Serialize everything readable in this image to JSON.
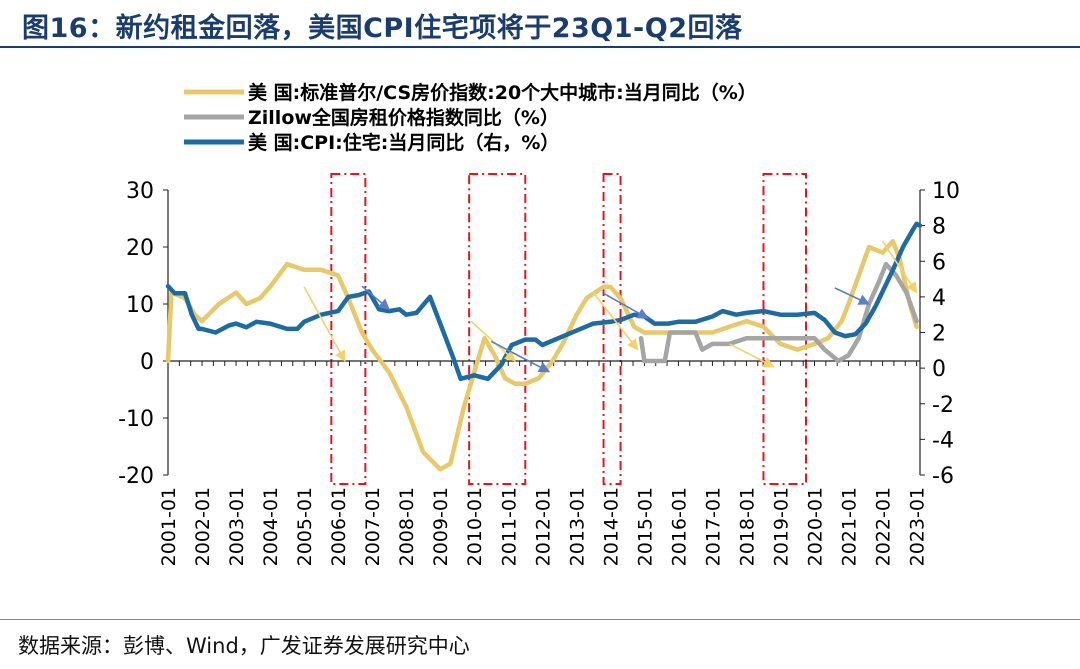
{
  "header": {
    "title": "图16：新约租金回落，美国CPI住宅项将于23Q1-Q2回落"
  },
  "footer": {
    "source": "数据来源：彭博、Wind，广发证券发展研究中心"
  },
  "colors": {
    "cs": "#E7C86A",
    "zillow": "#A5A5A5",
    "cpi": "#1E6BA3",
    "box": "#E3161D",
    "arrow_yellow": "#F4D26B",
    "arrow_blue": "#5B7EC4"
  },
  "chart_data": {
    "type": "line",
    "title": "",
    "legend": [
      {
        "key": "cs",
        "label": "美 国:标准普尔/CS房价指数:20个大中城市:当月同比（%）"
      },
      {
        "key": "zillow",
        "label": "Zillow全国房租价格指数同比（%）"
      },
      {
        "key": "cpi",
        "label": "美 国:CPI:住宅:当月同比（右，%）"
      }
    ],
    "legend_position": "top-left",
    "x_ticks": [
      "2001-01",
      "2002-01",
      "2003-01",
      "2004-01",
      "2005-01",
      "2006-01",
      "2007-01",
      "2008-01",
      "2009-01",
      "2010-01",
      "2011-01",
      "2012-01",
      "2013-01",
      "2014-01",
      "2015-01",
      "2016-01",
      "2017-01",
      "2018-01",
      "2019-01",
      "2020-01",
      "2021-01",
      "2022-01",
      "2023-01"
    ],
    "x_range": [
      2001.0,
      2023.1
    ],
    "y_left": {
      "range": [
        -20,
        30
      ],
      "ticks": [
        "-20",
        "-10",
        "0",
        "10",
        "20",
        "30"
      ]
    },
    "y_right": {
      "range": [
        -6,
        10
      ],
      "ticks": [
        "-6",
        "-4",
        "-2",
        "0",
        "2",
        "4",
        "6",
        "8",
        "10"
      ]
    },
    "series": [
      {
        "key": "cs",
        "name": "美国:标准普尔/CS房价指数:20个大中城市:当月同比",
        "axis": "left",
        "points": [
          [
            2001.0,
            0
          ],
          [
            2001.1,
            12
          ],
          [
            2001.5,
            11
          ],
          [
            2001.8,
            8
          ],
          [
            2002.0,
            7
          ],
          [
            2002.5,
            10
          ],
          [
            2003.0,
            12
          ],
          [
            2003.3,
            10
          ],
          [
            2003.7,
            11
          ],
          [
            2004.0,
            13
          ],
          [
            2004.5,
            17
          ],
          [
            2005.0,
            16
          ],
          [
            2005.5,
            16
          ],
          [
            2006.0,
            15
          ],
          [
            2006.3,
            11
          ],
          [
            2006.7,
            5
          ],
          [
            2007.0,
            2
          ],
          [
            2007.5,
            -2
          ],
          [
            2008.0,
            -8
          ],
          [
            2008.5,
            -16
          ],
          [
            2009.0,
            -19
          ],
          [
            2009.3,
            -18
          ],
          [
            2009.7,
            -8
          ],
          [
            2010.0,
            -2
          ],
          [
            2010.3,
            4
          ],
          [
            2010.6,
            1
          ],
          [
            2010.9,
            -3
          ],
          [
            2011.2,
            -4
          ],
          [
            2011.5,
            -4
          ],
          [
            2011.9,
            -3
          ],
          [
            2012.3,
            0
          ],
          [
            2012.6,
            3
          ],
          [
            2013.0,
            8
          ],
          [
            2013.3,
            11
          ],
          [
            2013.8,
            13
          ],
          [
            2014.0,
            13
          ],
          [
            2014.3,
            11
          ],
          [
            2014.7,
            6
          ],
          [
            2015.0,
            5
          ],
          [
            2015.5,
            5
          ],
          [
            2016.0,
            5
          ],
          [
            2016.5,
            5
          ],
          [
            2017.0,
            5
          ],
          [
            2017.5,
            6
          ],
          [
            2018.0,
            7
          ],
          [
            2018.5,
            6
          ],
          [
            2019.0,
            3
          ],
          [
            2019.5,
            2
          ],
          [
            2020.0,
            3
          ],
          [
            2020.4,
            4
          ],
          [
            2020.8,
            7
          ],
          [
            2021.0,
            10
          ],
          [
            2021.3,
            15
          ],
          [
            2021.6,
            20
          ],
          [
            2022.0,
            19
          ],
          [
            2022.3,
            21
          ],
          [
            2022.5,
            18
          ],
          [
            2022.8,
            10
          ],
          [
            2023.0,
            6
          ]
        ]
      },
      {
        "key": "zillow",
        "name": "Zillow全国房租价格指数同比",
        "axis": "left",
        "points": [
          [
            2014.9,
            4
          ],
          [
            2015.0,
            0
          ],
          [
            2015.6,
            0
          ],
          [
            2015.75,
            5
          ],
          [
            2016.0,
            5
          ],
          [
            2016.5,
            5
          ],
          [
            2016.7,
            2
          ],
          [
            2017.0,
            3
          ],
          [
            2017.5,
            3
          ],
          [
            2018.0,
            4
          ],
          [
            2018.5,
            4
          ],
          [
            2019.0,
            4
          ],
          [
            2019.5,
            4
          ],
          [
            2020.0,
            4
          ],
          [
            2020.3,
            2
          ],
          [
            2020.7,
            0
          ],
          [
            2021.0,
            1
          ],
          [
            2021.3,
            4
          ],
          [
            2021.6,
            10
          ],
          [
            2021.9,
            14
          ],
          [
            2022.1,
            17
          ],
          [
            2022.4,
            15
          ],
          [
            2022.7,
            12
          ],
          [
            2023.0,
            7
          ]
        ]
      },
      {
        "key": "cpi",
        "name": "美国:CPI:住宅:当月同比",
        "axis": "right",
        "points": [
          [
            2001.0,
            4.6
          ],
          [
            2001.2,
            4.2
          ],
          [
            2001.5,
            4.2
          ],
          [
            2001.7,
            3.0
          ],
          [
            2001.9,
            2.2
          ],
          [
            2002.0,
            2.2
          ],
          [
            2002.4,
            2.0
          ],
          [
            2002.8,
            2.4
          ],
          [
            2003.0,
            2.5
          ],
          [
            2003.3,
            2.3
          ],
          [
            2003.6,
            2.6
          ],
          [
            2004.0,
            2.5
          ],
          [
            2004.5,
            2.2
          ],
          [
            2004.8,
            2.2
          ],
          [
            2005.0,
            2.6
          ],
          [
            2005.5,
            3.0
          ],
          [
            2006.0,
            3.2
          ],
          [
            2006.3,
            4.0
          ],
          [
            2006.6,
            4.1
          ],
          [
            2006.9,
            4.3
          ],
          [
            2007.2,
            3.3
          ],
          [
            2007.5,
            3.2
          ],
          [
            2007.8,
            3.3
          ],
          [
            2008.0,
            3.0
          ],
          [
            2008.3,
            3.1
          ],
          [
            2008.7,
            4.0
          ],
          [
            2009.0,
            2.5
          ],
          [
            2009.4,
            0.5
          ],
          [
            2009.6,
            -0.6
          ],
          [
            2010.0,
            -0.4
          ],
          [
            2010.4,
            -0.6
          ],
          [
            2010.8,
            0.2
          ],
          [
            2011.1,
            1.3
          ],
          [
            2011.5,
            1.6
          ],
          [
            2011.8,
            1.6
          ],
          [
            2012.0,
            1.3
          ],
          [
            2012.5,
            1.7
          ],
          [
            2013.0,
            2.1
          ],
          [
            2013.5,
            2.5
          ],
          [
            2014.0,
            2.6
          ],
          [
            2014.3,
            2.7
          ],
          [
            2014.7,
            3.0
          ],
          [
            2015.0,
            2.9
          ],
          [
            2015.3,
            2.5
          ],
          [
            2015.7,
            2.5
          ],
          [
            2016.0,
            2.6
          ],
          [
            2016.5,
            2.6
          ],
          [
            2017.0,
            2.9
          ],
          [
            2017.3,
            3.2
          ],
          [
            2017.7,
            3.0
          ],
          [
            2018.0,
            3.1
          ],
          [
            2018.5,
            3.2
          ],
          [
            2019.0,
            3.0
          ],
          [
            2019.5,
            3.0
          ],
          [
            2020.0,
            3.1
          ],
          [
            2020.3,
            2.7
          ],
          [
            2020.6,
            2.0
          ],
          [
            2020.9,
            1.8
          ],
          [
            2021.2,
            1.9
          ],
          [
            2021.5,
            2.5
          ],
          [
            2021.8,
            3.5
          ],
          [
            2022.0,
            4.3
          ],
          [
            2022.3,
            5.5
          ],
          [
            2022.6,
            6.8
          ],
          [
            2022.9,
            7.8
          ],
          [
            2023.0,
            8.1
          ],
          [
            2023.1,
            8.0
          ]
        ]
      }
    ],
    "highlight_windows": [
      [
        2005.8,
        2006.8
      ],
      [
        2009.85,
        2011.5
      ],
      [
        2013.8,
        2014.3
      ],
      [
        2018.5,
        2019.75
      ]
    ],
    "trend_arrows": [
      {
        "color": "arrow_yellow",
        "axis": "left",
        "from": [
          2005.0,
          13
        ],
        "to": [
          2006.2,
          0
        ]
      },
      {
        "color": "arrow_blue",
        "axis": "right",
        "from": [
          2006.7,
          4.6
        ],
        "to": [
          2007.5,
          3.3
        ]
      },
      {
        "color": "arrow_yellow",
        "axis": "left",
        "from": [
          2009.9,
          7
        ],
        "to": [
          2011.2,
          0
        ]
      },
      {
        "color": "arrow_blue",
        "axis": "right",
        "from": [
          2010.5,
          1.5
        ],
        "to": [
          2012.2,
          -0.2
        ]
      },
      {
        "color": "arrow_yellow",
        "axis": "left",
        "from": [
          2013.5,
          12
        ],
        "to": [
          2014.8,
          2
        ]
      },
      {
        "color": "arrow_blue",
        "axis": "right",
        "from": [
          2013.8,
          4.2
        ],
        "to": [
          2015.1,
          2.8
        ]
      },
      {
        "color": "arrow_yellow",
        "axis": "left",
        "from": [
          2017.5,
          3
        ],
        "to": [
          2018.8,
          -1
        ]
      },
      {
        "color": "arrow_blue",
        "axis": "right",
        "from": [
          2020.6,
          4.5
        ],
        "to": [
          2021.6,
          3.6
        ]
      },
      {
        "color": "arrow_yellow",
        "axis": "left",
        "from": [
          2022.0,
          21
        ],
        "to": [
          2023.0,
          12
        ]
      }
    ]
  }
}
